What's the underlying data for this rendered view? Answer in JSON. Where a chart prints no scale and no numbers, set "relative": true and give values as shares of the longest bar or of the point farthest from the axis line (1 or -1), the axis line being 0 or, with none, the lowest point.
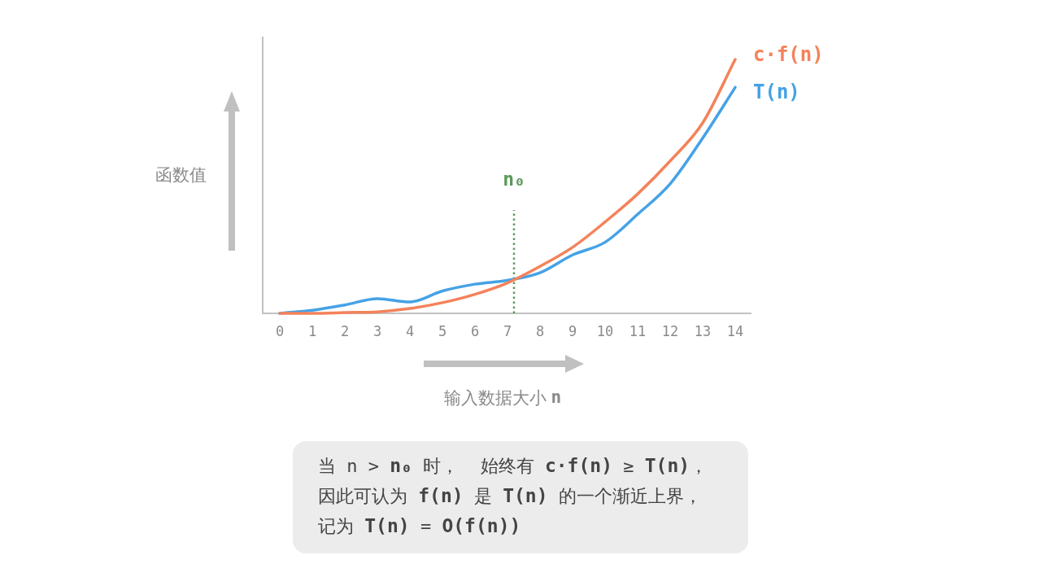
{
  "chart_data": {
    "type": "line",
    "xlabel": "输入数据大小 **n**",
    "ylabel": "函数值",
    "x": [
      0,
      1,
      2,
      3,
      4,
      5,
      6,
      7,
      8,
      9,
      10,
      11,
      12,
      13,
      14
    ],
    "xlim": [
      -0.5,
      14.5
    ],
    "xticks": [
      0,
      1,
      2,
      3,
      4,
      5,
      6,
      7,
      8,
      9,
      10,
      11,
      12,
      13,
      14
    ],
    "relative": true,
    "series": [
      {
        "name": "T(n)",
        "color": "#45a2e6",
        "values": [
          0,
          0.012,
          0.033,
          0.058,
          0.045,
          0.088,
          0.115,
          0.13,
          0.16,
          0.23,
          0.28,
          0.39,
          0.51,
          0.69,
          0.89
        ]
      },
      {
        "name": "c·f(n)",
        "color": "#f4825a",
        "values": [
          0,
          0,
          0.003,
          0.006,
          0.019,
          0.042,
          0.075,
          0.12,
          0.185,
          0.26,
          0.36,
          0.47,
          0.6,
          0.75,
          1
        ]
      }
    ],
    "ref_lines": [
      {
        "axis": "x",
        "value": 7.2,
        "label": "n₀",
        "color": "#5a9a5a",
        "line_style": "dotted"
      }
    ],
    "annotations": [
      "当 n > **n₀** 时，  始终有 **c·f(n)** ≥ **T(n)**，因此可认为 **f(n)** 是 **T(n)** 的一个渐近上界，记为 **T(n)** = **O(f(n))**"
    ]
  }
}
